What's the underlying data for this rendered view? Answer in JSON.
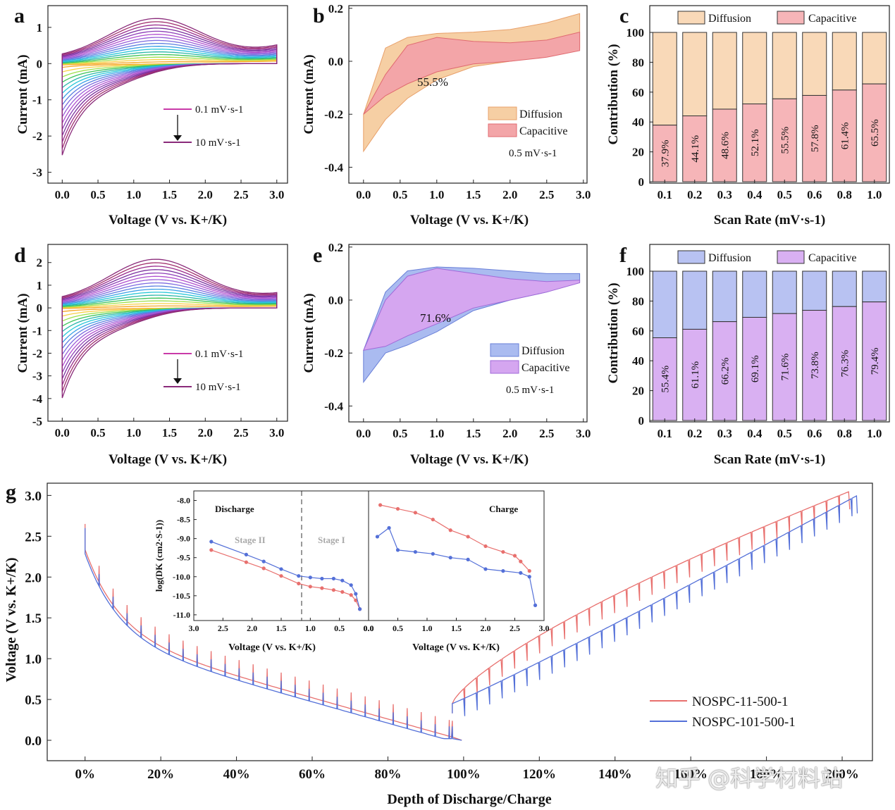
{
  "figure": {
    "panel_letters": [
      "a",
      "b",
      "c",
      "d",
      "e",
      "f",
      "g"
    ],
    "watermark": "知乎 @科学材料站"
  },
  "chart_data": [
    {
      "id": "a",
      "type": "line",
      "title": "",
      "xlabel": "Voltage (V vs. K+/K)",
      "ylabel": "Current (mA)",
      "xlim": [
        -0.2,
        3.15
      ],
      "ylim": [
        -3.3,
        1.6
      ],
      "xticks": [
        "0.0",
        "0.5",
        "1.0",
        "1.5",
        "2.0",
        "2.5",
        "3.0"
      ],
      "yticks": [
        "1",
        "0",
        "-1",
        "-2",
        "-3"
      ],
      "ytick_values": [
        1,
        0,
        -1,
        -2,
        -3
      ],
      "legend": {
        "from": "0.1 mV·s-1",
        "to": "10 mV·s-1"
      },
      "series_count": 16,
      "peak_cathodic": -2.7,
      "peak_anodic": 1.25,
      "colors": [
        "#f5a623",
        "#f7d046",
        "#9ee04a",
        "#3cc35a",
        "#2ab7a9",
        "#27c7d8",
        "#3aa0e6",
        "#5b7fe0",
        "#7d6be0",
        "#9a5fd8",
        "#b04fcf",
        "#8e3fb8",
        "#7a2f9e",
        "#9b2d8e",
        "#a0306e",
        "#8a2a7a"
      ]
    },
    {
      "id": "b",
      "type": "area",
      "title": "",
      "xlabel": "Voltage (V vs. K+/K)",
      "ylabel": "Current (mA)",
      "xlim": [
        -0.2,
        3.05
      ],
      "ylim": [
        -0.46,
        0.21
      ],
      "xticks": [
        "0.0",
        "0.5",
        "1.0",
        "1.5",
        "2.0",
        "2.5",
        "3.0"
      ],
      "yticks": [
        "0.2",
        "0.0",
        "-0.2",
        "-0.4"
      ],
      "ytick_values": [
        0.2,
        0.0,
        -0.2,
        -0.4
      ],
      "annotation": "55.5%",
      "scan_rate": "0.5 mV·s-1",
      "legend": [
        "Diffusion",
        "Capacitive"
      ],
      "colors": {
        "diffusion": "#f6cfa4",
        "capacitive": "#f3a5a8",
        "edge": "#e06a70"
      },
      "total_top": [
        [
          0.0,
          -0.2
        ],
        [
          0.3,
          0.05
        ],
        [
          0.6,
          0.09
        ],
        [
          1.0,
          0.105
        ],
        [
          1.5,
          0.11
        ],
        [
          2.0,
          0.12
        ],
        [
          2.5,
          0.145
        ],
        [
          2.95,
          0.18
        ]
      ],
      "total_bottom": [
        [
          0.0,
          -0.34
        ],
        [
          0.3,
          -0.22
        ],
        [
          0.6,
          -0.14
        ],
        [
          1.0,
          -0.07
        ],
        [
          1.5,
          -0.02
        ],
        [
          2.0,
          0.0
        ],
        [
          2.5,
          0.02
        ],
        [
          2.95,
          0.05
        ]
      ],
      "cap_top": [
        [
          0.0,
          -0.2
        ],
        [
          0.3,
          -0.05
        ],
        [
          0.6,
          0.06
        ],
        [
          1.0,
          0.09
        ],
        [
          1.5,
          0.075
        ],
        [
          2.0,
          0.07
        ],
        [
          2.5,
          0.08
        ],
        [
          2.95,
          0.11
        ]
      ],
      "cap_bottom": [
        [
          0.0,
          -0.2
        ],
        [
          0.3,
          -0.13
        ],
        [
          0.6,
          -0.085
        ],
        [
          1.0,
          -0.04
        ],
        [
          1.5,
          -0.01
        ],
        [
          2.0,
          0.0
        ],
        [
          2.5,
          0.015
        ],
        [
          2.95,
          0.04
        ]
      ]
    },
    {
      "id": "c",
      "type": "bar",
      "title": "",
      "xlabel": "Scan Rate (mV·s-1)",
      "ylabel": "Contribution (%)",
      "ylim": [
        0,
        100
      ],
      "categories": [
        "0.1",
        "0.2",
        "0.3",
        "0.4",
        "0.5",
        "0.6",
        "0.8",
        "1.0"
      ],
      "series": [
        {
          "name": "Capacitive",
          "values": [
            37.9,
            44.1,
            48.6,
            52.1,
            55.5,
            57.8,
            61.4,
            65.5
          ]
        },
        {
          "name": "Diffusion",
          "values": [
            62.1,
            55.9,
            51.4,
            47.9,
            44.5,
            42.2,
            38.6,
            34.5
          ]
        }
      ],
      "labels": [
        "37.9%",
        "44.1%",
        "48.6%",
        "52.1%",
        "55.5%",
        "57.8%",
        "61.4%",
        "65.5%"
      ],
      "yticks": [
        "0",
        "20",
        "40",
        "60",
        "80",
        "100"
      ],
      "legend": [
        "Diffusion",
        "Capacitive"
      ],
      "colors": {
        "diffusion": "#f9d9b8",
        "capacitive": "#f6b5b8"
      }
    },
    {
      "id": "d",
      "type": "line",
      "title": "",
      "xlabel": "Voltage (V vs. K+/K)",
      "ylabel": "Current (mA)",
      "xlim": [
        -0.2,
        3.15
      ],
      "ylim": [
        -5.0,
        2.8
      ],
      "xticks": [
        "0.0",
        "0.5",
        "1.0",
        "1.5",
        "2.0",
        "2.5",
        "3.0"
      ],
      "yticks": [
        "2",
        "1",
        "0",
        "-1",
        "-2",
        "-3",
        "-4",
        "-5"
      ],
      "ytick_values": [
        2,
        1,
        0,
        -1,
        -2,
        -3,
        -4,
        -5
      ],
      "legend": {
        "from": "0.1 mV·s-1",
        "to": "10 mV·s-1"
      },
      "series_count": 16,
      "peak_cathodic": -4.25,
      "peak_anodic": 2.15,
      "colors": [
        "#f5a623",
        "#f7d046",
        "#9ee04a",
        "#3cc35a",
        "#2ab7a9",
        "#27c7d8",
        "#3aa0e6",
        "#5b7fe0",
        "#7d6be0",
        "#9a5fd8",
        "#b04fcf",
        "#8e3fb8",
        "#7a2f9e",
        "#9b2d8e",
        "#a0306e",
        "#8a2a7a"
      ]
    },
    {
      "id": "e",
      "type": "area",
      "title": "",
      "xlabel": "Voltage (V vs. K+/K)",
      "ylabel": "Current (mA)",
      "xlim": [
        -0.2,
        3.05
      ],
      "ylim": [
        -0.46,
        0.21
      ],
      "xticks": [
        "0.0",
        "0.5",
        "1.0",
        "1.5",
        "2.0",
        "2.5",
        "3.0"
      ],
      "yticks": [
        "0.2",
        "0.0",
        "-0.2",
        "-0.4"
      ],
      "ytick_values": [
        0.2,
        0.0,
        -0.2,
        -0.4
      ],
      "annotation": "71.6%",
      "scan_rate": "0.5 mV·s-1",
      "legend": [
        "Diffusion",
        "Capacitive"
      ],
      "colors": {
        "diffusion": "#aabbf0",
        "capacitive": "#d5a6f0",
        "edge": "#8a6ad8"
      },
      "total_top": [
        [
          0.0,
          -0.19
        ],
        [
          0.3,
          0.03
        ],
        [
          0.6,
          0.11
        ],
        [
          1.0,
          0.125
        ],
        [
          1.5,
          0.12
        ],
        [
          2.0,
          0.11
        ],
        [
          2.5,
          0.1
        ],
        [
          2.95,
          0.1
        ]
      ],
      "total_bottom": [
        [
          0.0,
          -0.31
        ],
        [
          0.3,
          -0.2
        ],
        [
          0.6,
          -0.17
        ],
        [
          1.0,
          -0.12
        ],
        [
          1.5,
          -0.04
        ],
        [
          2.0,
          0.0
        ],
        [
          2.5,
          0.03
        ],
        [
          2.95,
          0.07
        ]
      ],
      "cap_top": [
        [
          0.0,
          -0.19
        ],
        [
          0.3,
          0.0
        ],
        [
          0.6,
          0.09
        ],
        [
          1.0,
          0.12
        ],
        [
          1.5,
          0.1
        ],
        [
          2.0,
          0.08
        ],
        [
          2.5,
          0.07
        ],
        [
          2.95,
          0.075
        ]
      ],
      "cap_bottom": [
        [
          0.0,
          -0.19
        ],
        [
          0.3,
          -0.175
        ],
        [
          0.6,
          -0.135
        ],
        [
          1.0,
          -0.09
        ],
        [
          1.5,
          -0.03
        ],
        [
          2.0,
          0.0
        ],
        [
          2.5,
          0.03
        ],
        [
          2.95,
          0.065
        ]
      ]
    },
    {
      "id": "f",
      "type": "bar",
      "title": "",
      "xlabel": "Scan Rate (mV·s-1)",
      "ylabel": "Contribution (%)",
      "ylim": [
        0,
        100
      ],
      "categories": [
        "0.1",
        "0.2",
        "0.3",
        "0.4",
        "0.5",
        "0.6",
        "0.8",
        "1.0"
      ],
      "series": [
        {
          "name": "Capacitive",
          "values": [
            55.4,
            61.1,
            66.2,
            69.1,
            71.6,
            73.8,
            76.3,
            79.4
          ]
        },
        {
          "name": "Diffusion",
          "values": [
            44.6,
            38.9,
            33.8,
            30.9,
            28.4,
            26.2,
            23.7,
            20.6
          ]
        }
      ],
      "labels": [
        "55.4%",
        "61.1%",
        "66.2%",
        "69.1%",
        "71.6%",
        "73.8%",
        "76.3%",
        "79.4%"
      ],
      "yticks": [
        "0",
        "20",
        "40",
        "60",
        "80",
        "100"
      ],
      "legend": [
        "Diffusion",
        "Capacitive"
      ],
      "colors": {
        "diffusion": "#b8c2f2",
        "capacitive": "#d9b0f2"
      }
    },
    {
      "id": "g",
      "type": "line",
      "title": "",
      "xlabel": "Depth of Discharge/Charge",
      "ylabel": "Voltage (V vs. K+/K)",
      "xlim": [
        -10,
        208
      ],
      "ylim": [
        -0.25,
        3.15
      ],
      "xticks": [
        "0%",
        "20%",
        "40%",
        "60%",
        "80%",
        "100%",
        "120%",
        "140%",
        "160%",
        "180%",
        "200%"
      ],
      "xtick_values": [
        0,
        20,
        40,
        60,
        80,
        100,
        120,
        140,
        160,
        180,
        200
      ],
      "yticks": [
        "3.0",
        "2.5",
        "2.0",
        "1.5",
        "1.0",
        "0.5",
        "0.0"
      ],
      "ytick_values": [
        3.0,
        2.5,
        2.0,
        1.5,
        1.0,
        0.5,
        0.0
      ],
      "series": [
        {
          "name": "NOSPC-11-500-1",
          "color": "#e8706e",
          "end": 202
        },
        {
          "name": "NOSPC-101-500-1",
          "color": "#5470d8",
          "end": 204
        }
      ],
      "inset": {
        "ylabel": "log(DK (cm2·S-1))",
        "yticks": [
          "-8.0",
          "-8.5",
          "-9.0",
          "-9.5",
          "-10.0",
          "-10.5",
          "-11.0"
        ],
        "ytick_values": [
          -8.0,
          -8.5,
          -9.0,
          -9.5,
          -10.0,
          -10.5,
          -11.0
        ],
        "ylim": [
          -11.15,
          -7.75
        ],
        "left": {
          "title": "Discharge",
          "xlabel": "Voltage (V vs. K+/K)",
          "xticks": [
            "3.0",
            "2.5",
            "2.0",
            "1.5",
            "1.0",
            "0.5",
            "0.0"
          ],
          "xlim": [
            3.0,
            0.0
          ],
          "stage2": "Stage II",
          "stage1": "Stage I",
          "divider_v": 1.15,
          "red": [
            [
              2.7,
              -9.3
            ],
            [
              2.1,
              -9.62
            ],
            [
              1.8,
              -9.78
            ],
            [
              1.5,
              -9.98
            ],
            [
              1.2,
              -10.18
            ],
            [
              1.0,
              -10.26
            ],
            [
              0.8,
              -10.3
            ],
            [
              0.6,
              -10.35
            ],
            [
              0.45,
              -10.4
            ],
            [
              0.3,
              -10.48
            ],
            [
              0.22,
              -10.62
            ],
            [
              0.15,
              -10.85
            ]
          ],
          "blue": [
            [
              2.7,
              -9.08
            ],
            [
              2.1,
              -9.42
            ],
            [
              1.8,
              -9.6
            ],
            [
              1.5,
              -9.8
            ],
            [
              1.2,
              -9.98
            ],
            [
              1.0,
              -10.02
            ],
            [
              0.8,
              -10.05
            ],
            [
              0.6,
              -10.05
            ],
            [
              0.45,
              -10.1
            ],
            [
              0.3,
              -10.22
            ],
            [
              0.22,
              -10.45
            ],
            [
              0.15,
              -10.85
            ]
          ]
        },
        "right": {
          "title": "Charge",
          "xlabel": "Voltage (V vs. K+/K)",
          "xticks": [
            "0.0",
            "0.5",
            "1.0",
            "1.5",
            "2.0",
            "2.5",
            "3.0"
          ],
          "xlim": [
            0.0,
            3.0
          ],
          "red": [
            [
              0.2,
              -8.12
            ],
            [
              0.5,
              -8.22
            ],
            [
              0.8,
              -8.32
            ],
            [
              1.1,
              -8.5
            ],
            [
              1.4,
              -8.78
            ],
            [
              1.7,
              -8.95
            ],
            [
              2.0,
              -9.2
            ],
            [
              2.3,
              -9.35
            ],
            [
              2.5,
              -9.45
            ],
            [
              2.6,
              -9.6
            ],
            [
              2.75,
              -9.85
            ]
          ],
          "blue": [
            [
              0.15,
              -8.95
            ],
            [
              0.35,
              -8.72
            ],
            [
              0.5,
              -9.3
            ],
            [
              0.8,
              -9.35
            ],
            [
              1.1,
              -9.4
            ],
            [
              1.4,
              -9.5
            ],
            [
              1.7,
              -9.55
            ],
            [
              2.0,
              -9.8
            ],
            [
              2.3,
              -9.85
            ],
            [
              2.6,
              -9.9
            ],
            [
              2.75,
              -10.0
            ],
            [
              2.85,
              -10.75
            ]
          ]
        }
      }
    }
  ]
}
